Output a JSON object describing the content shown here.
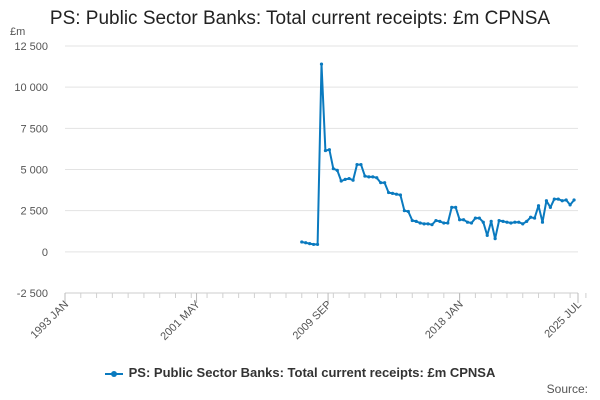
{
  "chart_data": {
    "type": "line",
    "title": "PS: Public Sector Banks: Total current receipts: £m CPNSA",
    "ylabel": "£m",
    "xlabel": "",
    "ylim": [
      -2500,
      12500
    ],
    "yticks": [
      -2500,
      0,
      2500,
      5000,
      7500,
      10000,
      12500
    ],
    "ytick_labels": [
      "-2 500",
      "0",
      "2 500",
      "5 000",
      "7 500",
      "10 000",
      "12 500"
    ],
    "xlim": [
      "1993-01",
      "2025-07"
    ],
    "xticks": [
      "1993-01",
      "2001-05",
      "2009-09",
      "2018-01",
      "2025-07"
    ],
    "xtick_labels": [
      "1993 JAN",
      "2001 MAY",
      "2009 SEP",
      "2018 JAN",
      "2025 JUL"
    ],
    "grid": true,
    "legend_position": "bottom",
    "series": [
      {
        "name": "PS: Public Sector Banks: Total current receipts: £m CPNSA",
        "color": "#0a7abf",
        "x": [
          "2008-01",
          "2008-04",
          "2008-07",
          "2008-10",
          "2009-01",
          "2009-04",
          "2009-07",
          "2009-10",
          "2010-01",
          "2010-04",
          "2010-07",
          "2010-10",
          "2011-01",
          "2011-04",
          "2011-07",
          "2011-10",
          "2012-01",
          "2012-04",
          "2012-07",
          "2012-10",
          "2013-01",
          "2013-04",
          "2013-07",
          "2013-10",
          "2014-01",
          "2014-04",
          "2014-07",
          "2014-10",
          "2015-01",
          "2015-04",
          "2015-07",
          "2015-10",
          "2016-01",
          "2016-04",
          "2016-07",
          "2016-10",
          "2017-01",
          "2017-04",
          "2017-07",
          "2017-10",
          "2018-01",
          "2018-04",
          "2018-07",
          "2018-10",
          "2019-01",
          "2019-04",
          "2019-07",
          "2019-10",
          "2020-01",
          "2020-04",
          "2020-07",
          "2020-10",
          "2021-01",
          "2021-04",
          "2021-07",
          "2021-10",
          "2022-01",
          "2022-04",
          "2022-07",
          "2022-10",
          "2023-01",
          "2023-04",
          "2023-07",
          "2023-10",
          "2024-01",
          "2024-04",
          "2024-07",
          "2024-10",
          "2025-01",
          "2025-04"
        ],
        "values": [
          600,
          550,
          500,
          450,
          450,
          11400,
          6150,
          6200,
          5050,
          4950,
          4300,
          4400,
          4450,
          4350,
          5300,
          5300,
          4600,
          4550,
          4550,
          4500,
          4200,
          4200,
          3600,
          3550,
          3500,
          3450,
          2500,
          2450,
          1900,
          1850,
          1750,
          1700,
          1700,
          1650,
          1900,
          1850,
          1750,
          1750,
          2700,
          2700,
          1950,
          1950,
          1800,
          1750,
          2050,
          2050,
          1800,
          1000,
          1850,
          800,
          1900,
          1850,
          1800,
          1750,
          1800,
          1800,
          1700,
          1850,
          2100,
          2050,
          2800,
          1800,
          3100,
          2700,
          3200,
          3200,
          3100,
          3150,
          2850,
          3150
        ]
      }
    ]
  },
  "legend": {
    "label": "PS: Public Sector Banks: Total current receipts: £m CPNSA"
  },
  "footer": {
    "source_label": "Source:"
  }
}
